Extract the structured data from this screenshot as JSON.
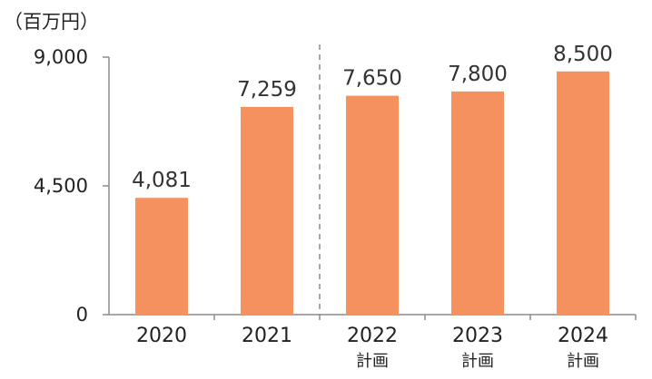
{
  "chart_data": {
    "type": "bar",
    "title": "",
    "unit_label": "（百万円）",
    "categories": [
      "2020",
      "2021",
      "2022",
      "2023",
      "2024"
    ],
    "category_sublabels": [
      "",
      "",
      "計画",
      "計画",
      "計画"
    ],
    "values": [
      4081,
      7259,
      7650,
      7800,
      8500
    ],
    "value_labels": [
      "4,081",
      "7,259",
      "7,650",
      "7,800",
      "8,500"
    ],
    "y_ticks": [
      0,
      4500,
      9000
    ],
    "y_tick_labels": [
      "0",
      "4,500",
      "9,000"
    ],
    "ylim": [
      0,
      9000
    ],
    "xlabel": "",
    "ylabel": "",
    "grid": false,
    "legend": "none",
    "bar_color": "#f4915f",
    "forecast_divider_after_index": 1
  }
}
